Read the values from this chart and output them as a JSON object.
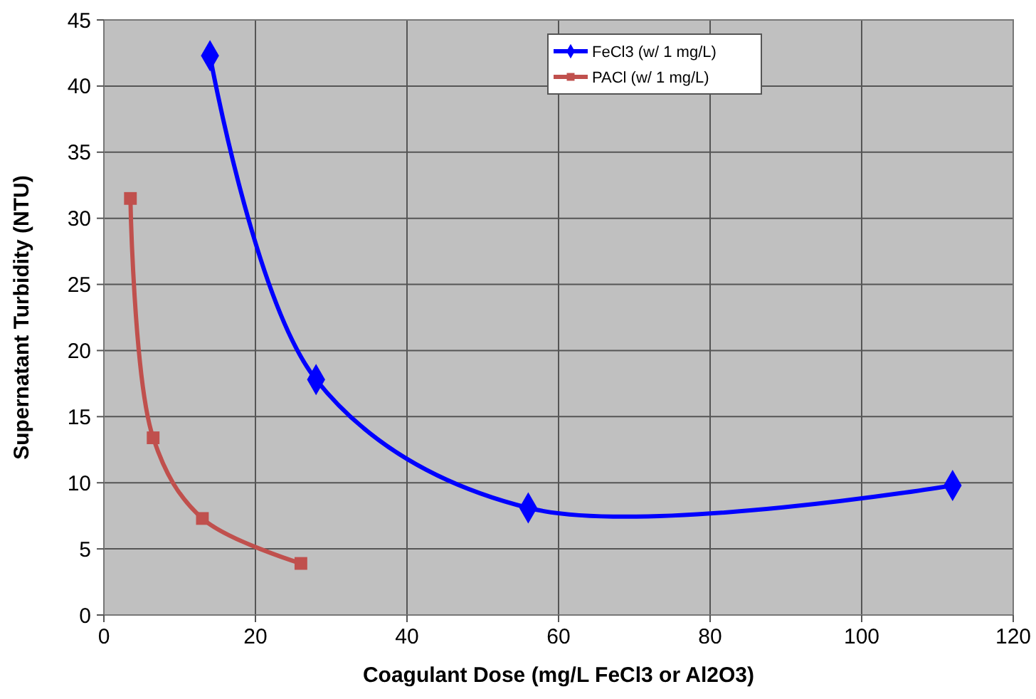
{
  "chart_data": {
    "type": "line",
    "xlabel": "Coagulant Dose (mg/L FeCl3 or Al2O3)",
    "ylabel": "Supernatant Turbidity (NTU)",
    "xlim": [
      0,
      120
    ],
    "xticks": [
      0,
      20,
      40,
      60,
      80,
      100,
      120
    ],
    "ylim": [
      0,
      45
    ],
    "yticks": [
      0,
      5,
      10,
      15,
      20,
      25,
      30,
      35,
      40,
      45
    ],
    "grid": true,
    "legend": "top right",
    "line_style": "solid",
    "series": [
      {
        "name": "FeCl3 (w/ 1 mg/L)",
        "color": "#0000ff",
        "marker": "diamond",
        "x": [
          14,
          28,
          56,
          112
        ],
        "values": [
          42.3,
          17.8,
          8.1,
          9.8
        ]
      },
      {
        "name": "PACl (w/ 1 mg/L)",
        "color": "#c0504d",
        "marker": "square",
        "x": [
          3.5,
          6.5,
          13,
          26
        ],
        "values": [
          31.5,
          13.4,
          7.3,
          3.9
        ]
      }
    ]
  }
}
